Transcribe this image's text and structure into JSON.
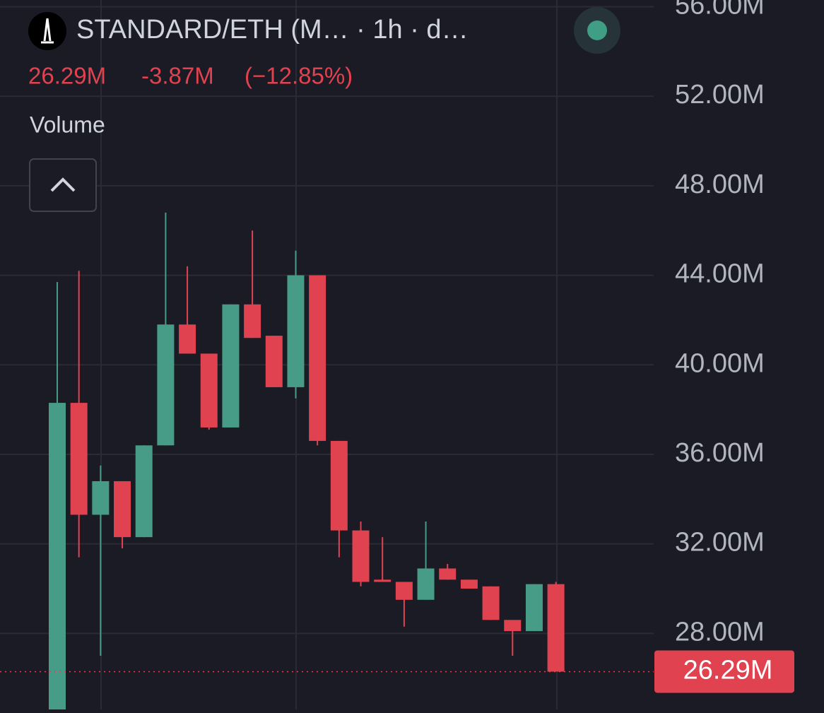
{
  "chart_data": {
    "type": "candlestick",
    "title": "STANDARD/ETH (M… · 1h · d…",
    "last_price": {
      "value": 26.29,
      "label": "26.29M"
    },
    "change": "-3.87M",
    "change_pct": "(−12.85%)",
    "indicator": "Volume",
    "up_color": "#479c87",
    "down_color": "#e0434f",
    "ylim": [
      24.6,
      56.3
    ],
    "yticks": [
      {
        "value": 28,
        "label": "28.00M"
      },
      {
        "value": 32,
        "label": "32.00M"
      },
      {
        "value": 36,
        "label": "36.00M"
      },
      {
        "value": 40,
        "label": "40.00M"
      },
      {
        "value": 44,
        "label": "44.00M"
      },
      {
        "value": 48,
        "label": "48.00M"
      },
      {
        "value": 52,
        "label": "52.00M"
      },
      {
        "value": 56,
        "label": "56.00M"
      }
    ],
    "grid": true,
    "open": [
      24.0,
      38.3,
      33.3,
      34.8,
      32.3,
      36.4,
      41.8,
      40.5,
      37.2,
      42.7,
      41.3,
      39.0,
      44.0,
      36.6,
      32.6,
      30.4,
      30.3,
      29.5,
      30.9,
      30.4,
      30.1,
      28.6,
      28.1,
      30.2
    ],
    "high": [
      43.7,
      44.2,
      35.5,
      34.8,
      36.4,
      46.8,
      44.4,
      40.5,
      42.7,
      46.0,
      41.3,
      45.1,
      44.0,
      36.6,
      33.0,
      32.3,
      30.3,
      33.0,
      31.1,
      30.4,
      30.1,
      28.6,
      30.2,
      30.3
    ],
    "low": [
      24.0,
      31.4,
      27.0,
      31.8,
      32.3,
      36.4,
      40.5,
      37.1,
      37.2,
      41.2,
      39.0,
      38.5,
      36.4,
      31.4,
      30.1,
      30.3,
      28.3,
      29.5,
      30.4,
      30.0,
      28.6,
      27.0,
      28.1,
      26.29
    ],
    "close": [
      38.3,
      33.3,
      34.8,
      32.3,
      36.4,
      41.8,
      40.5,
      37.2,
      42.7,
      41.2,
      39.0,
      44.0,
      36.6,
      32.6,
      30.3,
      30.3,
      29.5,
      30.9,
      30.4,
      30.0,
      28.6,
      28.1,
      30.2,
      26.29
    ]
  }
}
